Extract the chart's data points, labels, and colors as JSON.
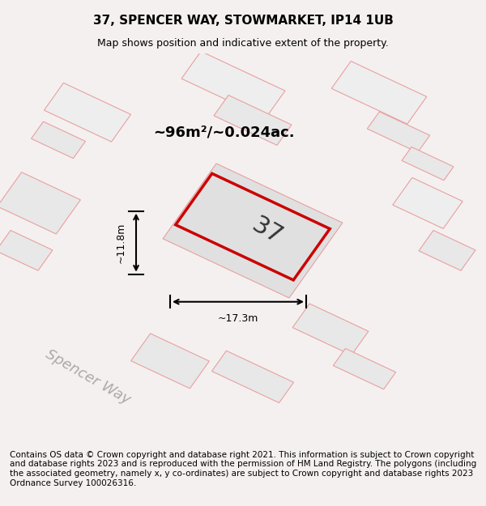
{
  "title": "37, SPENCER WAY, STOWMARKET, IP14 1UB",
  "subtitle": "Map shows position and indicative extent of the property.",
  "area_text": "~96m²/~0.024ac.",
  "width_label": "~17.3m",
  "height_label": "~11.8m",
  "number_label": "37",
  "street_label": "Spencer Way",
  "footer": "Contains OS data © Crown copyright and database right 2021. This information is subject to Crown copyright and database rights 2023 and is reproduced with the permission of HM Land Registry. The polygons (including the associated geometry, namely x, y co-ordinates) are subject to Crown copyright and database rights 2023 Ordnance Survey 100026316.",
  "bg_color": "#f5f0f0",
  "map_bg": "#ffffff",
  "plot_color": "#cc0000",
  "building_fill": "#e8e8e8",
  "road_fill": "#ffffff",
  "pink_line": "#e8a0a0",
  "title_fontsize": 11,
  "subtitle_fontsize": 9,
  "footer_fontsize": 7.5
}
